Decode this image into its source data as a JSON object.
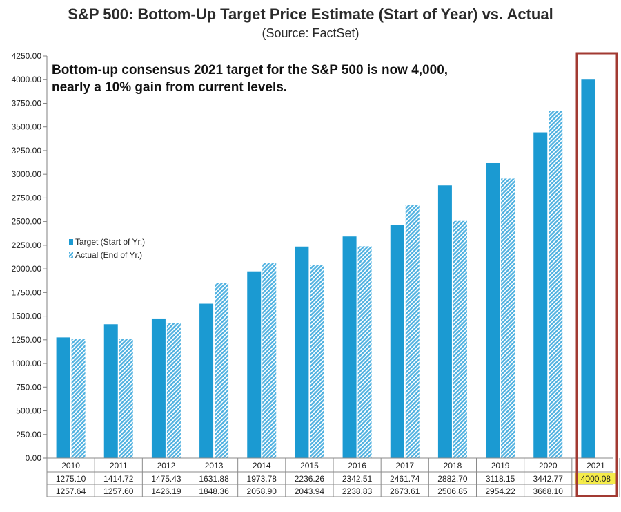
{
  "header": {
    "title": "S&P 500: Bottom-Up Target Price Estimate (Start of Year) vs. Actual",
    "subtitle": "(Source: FactSet)"
  },
  "annotation": {
    "line1": "Bottom-up consensus 2021 target for the S&P 500 is now 4,000,",
    "line2": "nearly a 10% gain from current levels."
  },
  "colors": {
    "target": "#1b9ad2",
    "actual": "#7fc6e8",
    "highlight_box": "#a23a32",
    "highlight_cell": "#f5ec4a"
  },
  "chart_data": {
    "type": "bar",
    "title": "S&P 500: Bottom-Up Target Price Estimate (Start of Year) vs. Actual",
    "subtitle": "(Source: FactSet)",
    "categories": [
      "2010",
      "2011",
      "2012",
      "2013",
      "2014",
      "2015",
      "2016",
      "2017",
      "2018",
      "2019",
      "2020",
      "2021"
    ],
    "series": [
      {
        "name": "Target (Start of Yr.)",
        "values": [
          1275.1,
          1414.72,
          1475.43,
          1631.88,
          1973.78,
          2236.26,
          2342.51,
          2461.74,
          2882.7,
          3118.15,
          3442.77,
          4000.08
        ],
        "labels": [
          "1275.10",
          "1414.72",
          "1475.43",
          "1631.88",
          "1973.78",
          "2236.26",
          "2342.51",
          "2461.74",
          "2882.70",
          "3118.15",
          "3442.77",
          "4000.08"
        ]
      },
      {
        "name": "Actual (End of Yr.)",
        "values": [
          1257.64,
          1257.6,
          1426.19,
          1848.36,
          2058.9,
          2043.94,
          2238.83,
          2673.61,
          2506.85,
          2954.22,
          3668.1,
          null
        ],
        "labels": [
          "1257.64",
          "1257.60",
          "1426.19",
          "1848.36",
          "2058.90",
          "2043.94",
          "2238.83",
          "2673.61",
          "2506.85",
          "2954.22",
          "3668.10",
          ""
        ]
      }
    ],
    "ylim": [
      0,
      4250
    ],
    "yticks": [
      "0.00",
      "250.00",
      "500.00",
      "750.00",
      "1000.00",
      "1250.00",
      "1500.00",
      "1750.00",
      "2000.00",
      "2250.00",
      "2500.00",
      "2750.00",
      "3000.00",
      "3250.00",
      "3500.00",
      "3750.00",
      "4000.00",
      "4250.00"
    ],
    "grid": false,
    "legend_position": "left-middle",
    "highlight_category": "2021"
  }
}
